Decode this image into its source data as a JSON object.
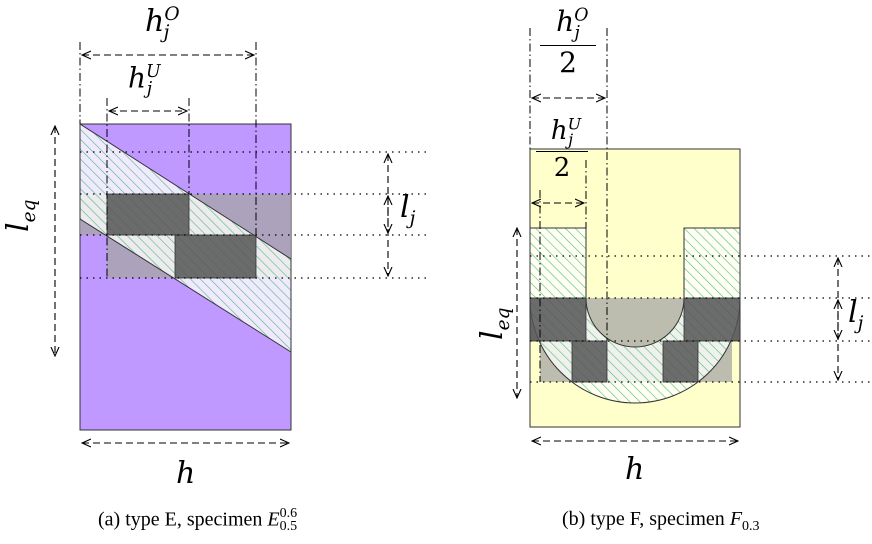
{
  "panel_a": {
    "caption_prefix": "(a)  type E, specimen ",
    "caption_symbol": "E",
    "caption_sup": "0.6",
    "caption_sub": "0.5",
    "label_hO": "h",
    "label_hO_sup": "O",
    "label_hO_sub": "j",
    "label_hU": "h",
    "label_hU_sup": "U",
    "label_hU_sub": "j",
    "label_leq": "l",
    "label_leq_sub": "eq",
    "label_lj": "l",
    "label_lj_sub": "j",
    "label_h": "h",
    "fill_color": "#bf99ff"
  },
  "panel_b": {
    "caption_prefix": "(b)  type F, specimen ",
    "caption_symbol": "F",
    "caption_sub": "0.3",
    "label_hO": "h",
    "label_hO_sup": "O",
    "label_hO_sub": "j",
    "label_hO_den": "2",
    "label_hU": "h",
    "label_hU_sup": "U",
    "label_hU_sub": "j",
    "label_hU_den": "2",
    "label_leq": "l",
    "label_leq_sub": "eq",
    "label_lj": "l",
    "label_lj_sub": "j",
    "label_h": "h",
    "fill_color": "#ffffcc"
  },
  "colors": {
    "hatch": "#4bbf70",
    "dark_box": "#555555",
    "light_box": "#a6a6a6",
    "outline": "#333333"
  }
}
